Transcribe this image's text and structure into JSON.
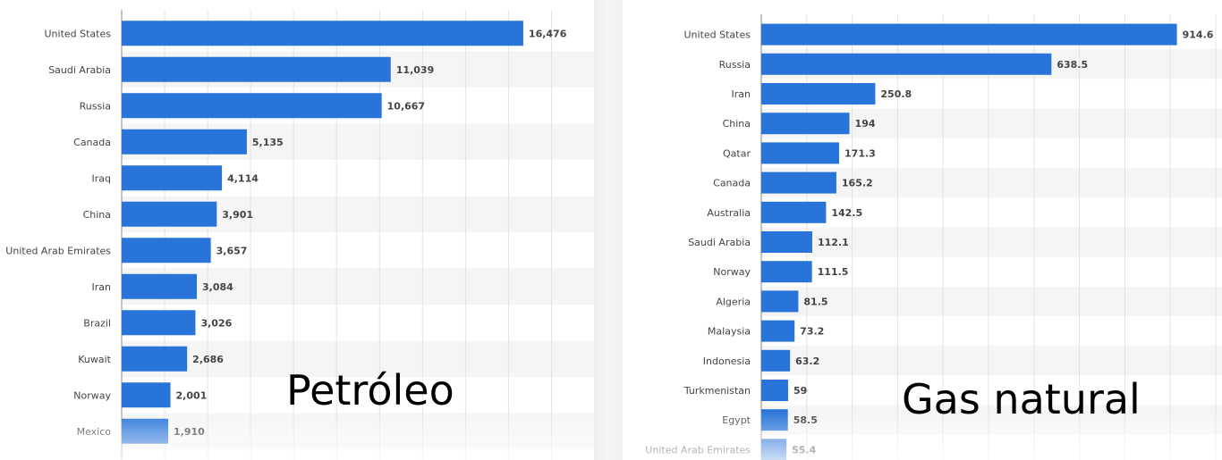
{
  "labels": {
    "oil": "Petróleo",
    "gas": "Gas natural"
  },
  "colors": {
    "bar": "#2874d9",
    "stripe": "#f5f5f5",
    "grid": "#e3e3e3",
    "axis": "#8a8a8a",
    "text": "#444444"
  },
  "chart_data": [
    {
      "type": "bar",
      "orientation": "horizontal",
      "title": "",
      "xlabel": "",
      "ylabel": "",
      "categories": [
        "United States",
        "Saudi Arabia",
        "Russia",
        "Canada",
        "Iraq",
        "China",
        "United Arab Emirates",
        "Iran",
        "Brazil",
        "Kuwait",
        "Norway",
        "Mexico"
      ],
      "value_labels": [
        "16,476",
        "11,039",
        "10,667",
        "5,135",
        "4,114",
        "3,901",
        "3,657",
        "3,084",
        "3,026",
        "2,686",
        "2,001",
        "1,910"
      ],
      "values": [
        16476,
        11039,
        10667,
        5135,
        4114,
        3901,
        3657,
        3084,
        3026,
        2686,
        2001,
        1910
      ],
      "xlim": [
        0,
        19000
      ],
      "grid": true,
      "legend": "none"
    },
    {
      "type": "bar",
      "orientation": "horizontal",
      "title": "",
      "xlabel": "",
      "ylabel": "",
      "categories": [
        "United States",
        "Russia",
        "Iran",
        "China",
        "Qatar",
        "Canada",
        "Australia",
        "Saudi Arabia",
        "Norway",
        "Algeria",
        "Malaysia",
        "Indonesia",
        "Turkmenistan",
        "Egypt",
        "United Arab Emirates"
      ],
      "value_labels": [
        "914.6",
        "638.5",
        "250.8",
        "194",
        "171.3",
        "165.2",
        "142.5",
        "112.1",
        "111.5",
        "81.5",
        "73.2",
        "63.2",
        "59",
        "58.5",
        "55.4"
      ],
      "values": [
        914.6,
        638.5,
        250.8,
        194,
        171.3,
        165.2,
        142.5,
        112.1,
        111.5,
        81.5,
        73.2,
        63.2,
        59,
        58.5,
        55.4
      ],
      "xlim": [
        0,
        1000
      ],
      "grid": true,
      "legend": "none"
    }
  ]
}
